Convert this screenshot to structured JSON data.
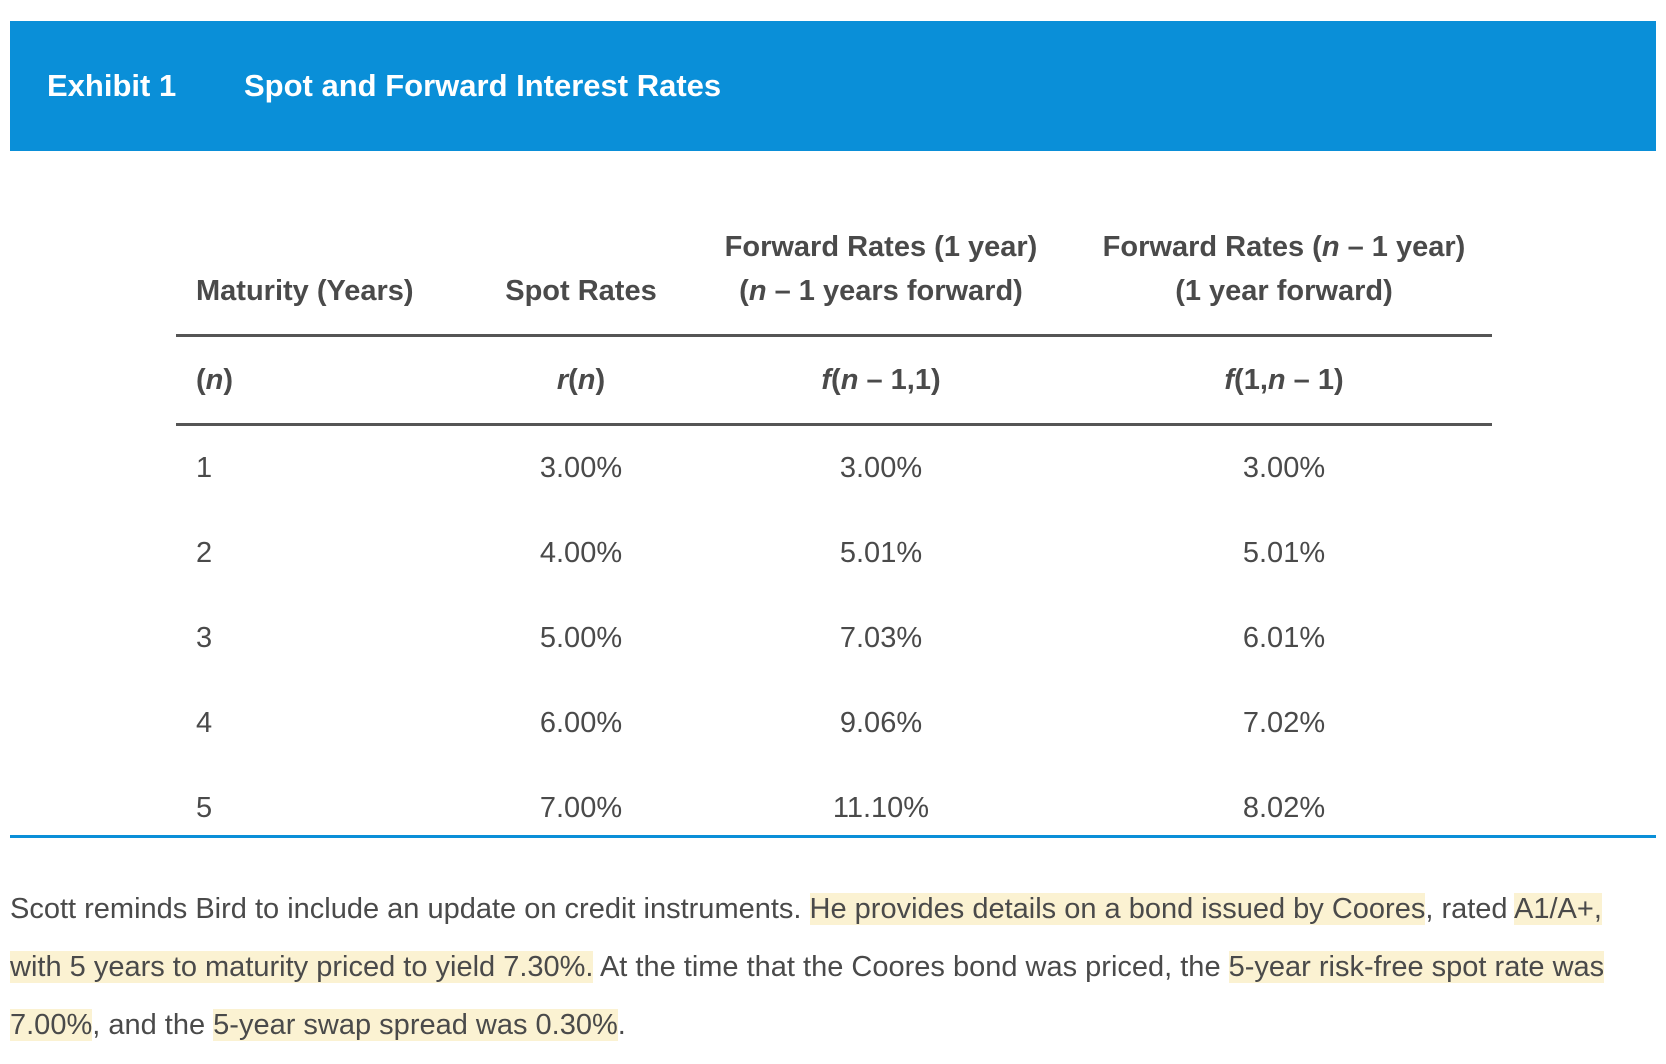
{
  "banner": {
    "label": "Exhibit 1",
    "title": "Spot and Forward Interest Rates",
    "color": "#0a8fd8"
  },
  "table": {
    "headers": [
      {
        "line1": "",
        "line2": "Maturity (Years)"
      },
      {
        "line1": "",
        "line2": "Spot Rates"
      },
      {
        "line1": "Forward Rates (1 year)",
        "line2": "(n – 1 years forward)"
      },
      {
        "line1": "Forward Rates (n – 1 year)",
        "line2": "(1 year forward)"
      }
    ],
    "symbols": [
      "(n)",
      "r(n)",
      "f(n – 1,1)",
      "f(1,n – 1)"
    ],
    "rows": [
      [
        "1",
        "3.00%",
        "3.00%",
        "3.00%"
      ],
      [
        "2",
        "4.00%",
        "5.01%",
        "5.01%"
      ],
      [
        "3",
        "5.00%",
        "7.03%",
        "6.01%"
      ],
      [
        "4",
        "6.00%",
        "9.06%",
        "7.02%"
      ],
      [
        "5",
        "7.00%",
        "11.10%",
        "8.02%"
      ]
    ]
  },
  "narrative": {
    "s1": "Scott reminds Bird to include an update on credit instruments. ",
    "h1": "He provides details on a bond issued by Coores",
    "s2": ", rated ",
    "h2": "A1/A+, with 5 years to maturity priced to yield 7.30%.",
    "s3": " At the time that the Coores bond was priced, the ",
    "h3": "5-year risk-free spot rate was 7.00%",
    "s4": ", and the ",
    "h4": "5-year swap spread was 0.30%",
    "s5": ".",
    "highlight_color": "#fbf2d2"
  }
}
